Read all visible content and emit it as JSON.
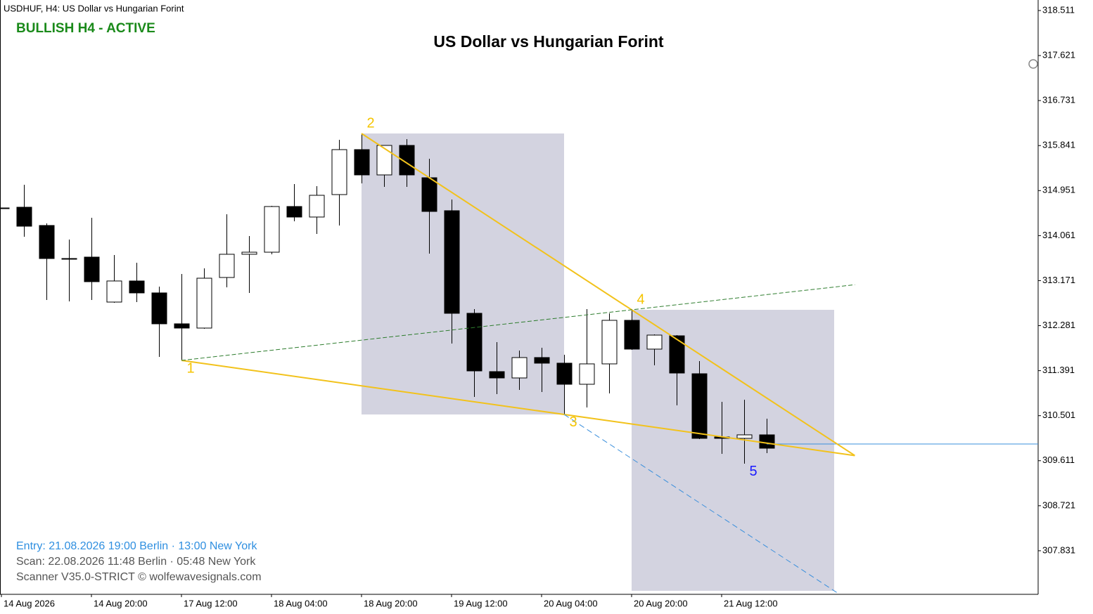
{
  "chart_data": {
    "type": "candlestick",
    "header": "USDHUF, H4:  US Dollar vs Hungarian Forint",
    "title": "US Dollar vs Hungarian Forint",
    "status": "BULLISH H4 - ACTIVE",
    "info": [
      "Entry: 21.08.2026  19:00 Berlin · 13:00 New York",
      "Scan:  22.08.2026  11:48 Berlin · 05:48 New York",
      "Scanner V35.0-STRICT   © wolfewavesignals.com"
    ],
    "categories": [
      "14 Aug 2026",
      null,
      null,
      null,
      "14 Aug 20:00",
      null,
      null,
      null,
      "17 Aug 12:00",
      null,
      null,
      null,
      "18 Aug 04:00",
      null,
      null,
      null,
      "18 Aug 20:00",
      null,
      null,
      null,
      "19 Aug 12:00",
      null,
      null,
      null,
      "20 Aug 04:00",
      null,
      null,
      null,
      "20 Aug 20:00",
      null,
      null,
      null,
      "21 Aug 12:00",
      null,
      null
    ],
    "open": [
      314.608,
      314.622,
      314.261,
      313.608,
      313.636,
      312.747,
      313.164,
      312.928,
      312.317,
      312.233,
      313.233,
      313.692,
      313.733,
      314.636,
      314.428,
      314.872,
      315.761,
      315.261,
      315.844,
      315.205,
      314.553,
      312.525,
      311.372,
      311.247,
      311.65,
      311.539,
      311.122,
      311.525,
      312.386,
      311.817,
      312.08,
      311.33,
      310.08,
      310.053,
      310.122
    ],
    "high": [
      314.608,
      315.067,
      314.303,
      313.983,
      314.414,
      313.678,
      313.525,
      313.053,
      313.303,
      313.414,
      314.483,
      314.053,
      314.65,
      315.08,
      315.039,
      315.955,
      316.08,
      315.844,
      315.969,
      315.58,
      314.775,
      312.608,
      311.955,
      311.789,
      311.844,
      311.705,
      312.608,
      312.525,
      312.594,
      312.108,
      312.094,
      311.58,
      310.775,
      310.817,
      310.442
    ],
    "low": [
      314.608,
      314.039,
      312.789,
      312.761,
      312.789,
      312.733,
      312.747,
      311.664,
      311.594,
      312.219,
      313.039,
      312.928,
      313.692,
      314.344,
      314.094,
      314.261,
      315.094,
      315.025,
      315.025,
      313.705,
      311.928,
      310.872,
      310.928,
      311.011,
      310.969,
      310.525,
      310.664,
      310.942,
      311.803,
      311.497,
      310.705,
      310.039,
      309.747,
      309.553,
      309.761
    ],
    "close": [
      314.608,
      314.247,
      313.608,
      313.608,
      313.15,
      313.164,
      312.928,
      312.317,
      312.233,
      313.219,
      313.692,
      313.733,
      314.636,
      314.428,
      314.858,
      315.761,
      315.261,
      315.844,
      315.261,
      314.539,
      312.525,
      311.386,
      311.247,
      311.65,
      311.539,
      311.122,
      311.525,
      312.386,
      311.817,
      312.094,
      311.344,
      310.053,
      310.053,
      310.122,
      309.858
    ],
    "up_color": "#ffffff",
    "down_color": "#000000",
    "ylim": [
      306.969,
      318.719
    ],
    "yticks": [
      318.511,
      317.621,
      316.731,
      315.841,
      314.951,
      314.061,
      313.171,
      312.281,
      311.391,
      310.501,
      309.611,
      308.721,
      307.831
    ],
    "wave_points": [
      {
        "label": "1",
        "index": 8,
        "price": 311.594,
        "color": "#f5c400"
      },
      {
        "label": "2",
        "index": 16,
        "price": 316.08,
        "color": "#f5c400"
      },
      {
        "label": "3",
        "index": 25,
        "price": 310.525,
        "color": "#f5c400"
      },
      {
        "label": "4",
        "index": 28,
        "price": 312.594,
        "color": "#f5c400"
      },
      {
        "label": "5",
        "index": 33,
        "price": 309.553,
        "color": "#1a1aff"
      }
    ],
    "price_line": 309.942
  }
}
